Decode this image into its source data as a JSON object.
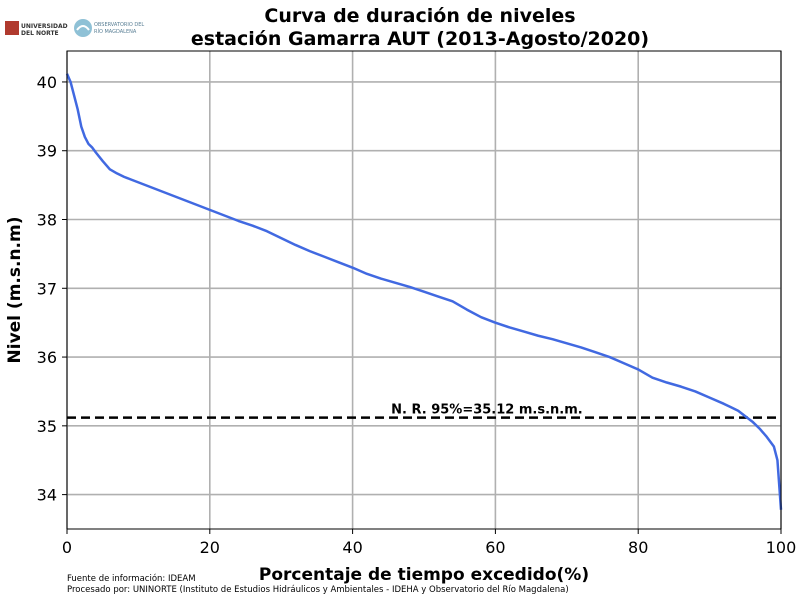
{
  "logos": {
    "uninorte_line1": "UNIVERSIDAD",
    "uninorte_line2": "DEL NORTE",
    "observatorio_line1": "OBSERVATORIO DEL",
    "observatorio_line2": "RÍO MAGDALENA"
  },
  "footer": {
    "source": "Fuente de información: IDEAM",
    "processed": "Procesado por: UNINORTE (Instituto de Estudios Hidráulicos y Ambientales - IDEHA y Observatorio del Río Magdalena)"
  },
  "chart_data": {
    "type": "line",
    "title_line1": "Curva de duración de niveles",
    "title_line2": "estación Gamarra AUT (2013-Agosto/2020)",
    "xlabel": "Porcentaje de tiempo excedido(%)",
    "ylabel": "Nivel (m.s.n.m)",
    "xlim": [
      0,
      100
    ],
    "ylim": [
      33.5,
      40.45
    ],
    "xticks": [
      0,
      20,
      40,
      60,
      80,
      100
    ],
    "yticks": [
      34,
      35,
      36,
      37,
      38,
      39,
      40
    ],
    "grid": true,
    "line_color": "#4169e1",
    "series": [
      {
        "x": [
          0,
          0.5,
          1,
          1.5,
          2,
          2.5,
          3,
          3.5,
          4,
          5,
          6,
          7,
          8,
          9,
          10,
          12,
          14,
          16,
          18,
          20,
          22,
          24,
          26,
          28,
          30,
          32,
          34,
          36,
          38,
          40,
          42,
          44,
          46,
          48,
          50,
          52,
          54,
          55,
          56,
          58,
          60,
          62,
          64,
          66,
          68,
          70,
          72,
          74,
          76,
          78,
          80,
          82,
          84,
          86,
          88,
          90,
          92,
          93,
          94,
          95,
          96,
          97,
          98,
          99,
          99.5,
          100
        ],
        "y": [
          40.12,
          40.0,
          39.8,
          39.6,
          39.35,
          39.2,
          39.1,
          39.05,
          38.98,
          38.85,
          38.73,
          38.67,
          38.62,
          38.58,
          38.54,
          38.46,
          38.38,
          38.3,
          38.22,
          38.14,
          38.06,
          37.98,
          37.91,
          37.83,
          37.73,
          37.63,
          37.54,
          37.46,
          37.38,
          37.3,
          37.21,
          37.14,
          37.08,
          37.02,
          36.95,
          36.88,
          36.81,
          36.75,
          36.69,
          36.58,
          36.5,
          36.43,
          36.37,
          36.31,
          36.26,
          36.2,
          36.14,
          36.07,
          36.0,
          35.91,
          35.82,
          35.7,
          35.63,
          35.57,
          35.5,
          35.41,
          35.32,
          35.27,
          35.22,
          35.14,
          35.06,
          34.96,
          34.84,
          34.7,
          34.5,
          33.78
        ]
      }
    ],
    "reference_line": {
      "y": 35.12,
      "style": "dashed",
      "label": "N. R. 95%=35.12 m.s.n.m."
    }
  }
}
